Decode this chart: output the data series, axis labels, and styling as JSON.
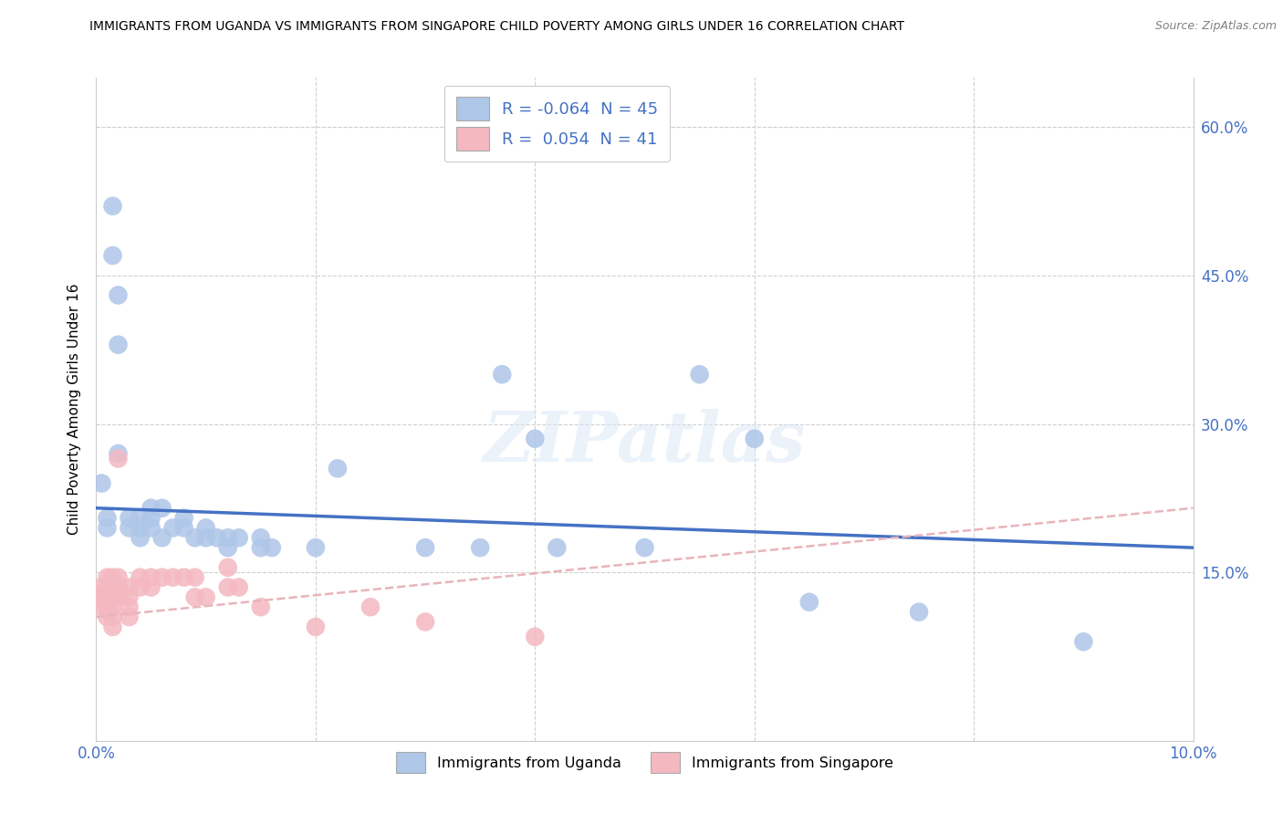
{
  "title": "IMMIGRANTS FROM UGANDA VS IMMIGRANTS FROM SINGAPORE CHILD POVERTY AMONG GIRLS UNDER 16 CORRELATION CHART",
  "source": "Source: ZipAtlas.com",
  "ylabel": "Child Poverty Among Girls Under 16",
  "uganda_color": "#aec6e8",
  "singapore_color": "#f4b8c1",
  "uganda_line_color": "#4472c4",
  "singapore_line_color": "#e8b4bc",
  "legend_text_color": "#4472c4",
  "axis_label_color": "#4472c4",
  "grid_color": "#d0d0d0",
  "watermark": "ZIPatlas",
  "right_ytick_labels": [
    "15.0%",
    "30.0%",
    "45.0%",
    "60.0%"
  ],
  "right_ytick_vals": [
    0.15,
    0.3,
    0.45,
    0.6
  ],
  "xmin": 0.0,
  "xmax": 0.1,
  "ymin": -0.02,
  "ymax": 0.65,
  "uganda_scatter": [
    [
      0.0005,
      0.24
    ],
    [
      0.001,
      0.205
    ],
    [
      0.001,
      0.195
    ],
    [
      0.0015,
      0.52
    ],
    [
      0.0015,
      0.47
    ],
    [
      0.002,
      0.43
    ],
    [
      0.002,
      0.38
    ],
    [
      0.002,
      0.27
    ],
    [
      0.003,
      0.205
    ],
    [
      0.003,
      0.195
    ],
    [
      0.004,
      0.205
    ],
    [
      0.004,
      0.195
    ],
    [
      0.004,
      0.185
    ],
    [
      0.005,
      0.215
    ],
    [
      0.005,
      0.205
    ],
    [
      0.005,
      0.195
    ],
    [
      0.006,
      0.215
    ],
    [
      0.006,
      0.185
    ],
    [
      0.007,
      0.195
    ],
    [
      0.008,
      0.205
    ],
    [
      0.008,
      0.195
    ],
    [
      0.009,
      0.185
    ],
    [
      0.01,
      0.195
    ],
    [
      0.01,
      0.185
    ],
    [
      0.011,
      0.185
    ],
    [
      0.012,
      0.185
    ],
    [
      0.012,
      0.175
    ],
    [
      0.013,
      0.185
    ],
    [
      0.015,
      0.185
    ],
    [
      0.015,
      0.175
    ],
    [
      0.016,
      0.175
    ],
    [
      0.02,
      0.175
    ],
    [
      0.022,
      0.255
    ],
    [
      0.03,
      0.175
    ],
    [
      0.035,
      0.175
    ],
    [
      0.037,
      0.35
    ],
    [
      0.04,
      0.285
    ],
    [
      0.042,
      0.175
    ],
    [
      0.05,
      0.175
    ],
    [
      0.055,
      0.35
    ],
    [
      0.06,
      0.285
    ],
    [
      0.065,
      0.12
    ],
    [
      0.075,
      0.11
    ],
    [
      0.09,
      0.08
    ]
  ],
  "singapore_scatter": [
    [
      0.0005,
      0.135
    ],
    [
      0.0005,
      0.125
    ],
    [
      0.0005,
      0.115
    ],
    [
      0.001,
      0.145
    ],
    [
      0.001,
      0.135
    ],
    [
      0.001,
      0.125
    ],
    [
      0.001,
      0.115
    ],
    [
      0.001,
      0.105
    ],
    [
      0.0015,
      0.145
    ],
    [
      0.0015,
      0.135
    ],
    [
      0.0015,
      0.125
    ],
    [
      0.0015,
      0.115
    ],
    [
      0.0015,
      0.105
    ],
    [
      0.0015,
      0.095
    ],
    [
      0.002,
      0.265
    ],
    [
      0.002,
      0.145
    ],
    [
      0.002,
      0.135
    ],
    [
      0.002,
      0.125
    ],
    [
      0.003,
      0.135
    ],
    [
      0.003,
      0.125
    ],
    [
      0.003,
      0.115
    ],
    [
      0.003,
      0.105
    ],
    [
      0.004,
      0.145
    ],
    [
      0.004,
      0.135
    ],
    [
      0.005,
      0.145
    ],
    [
      0.005,
      0.135
    ],
    [
      0.006,
      0.145
    ],
    [
      0.007,
      0.145
    ],
    [
      0.008,
      0.145
    ],
    [
      0.009,
      0.145
    ],
    [
      0.009,
      0.125
    ],
    [
      0.01,
      0.125
    ],
    [
      0.012,
      0.155
    ],
    [
      0.012,
      0.135
    ],
    [
      0.013,
      0.135
    ],
    [
      0.015,
      0.115
    ],
    [
      0.02,
      0.095
    ],
    [
      0.025,
      0.115
    ],
    [
      0.03,
      0.1
    ],
    [
      0.04,
      0.085
    ]
  ],
  "uganda_trend_x": [
    0.0,
    0.1
  ],
  "uganda_trend_y": [
    0.215,
    0.175
  ],
  "singapore_trend_x": [
    0.0,
    0.1
  ],
  "singapore_trend_y": [
    0.105,
    0.215
  ]
}
